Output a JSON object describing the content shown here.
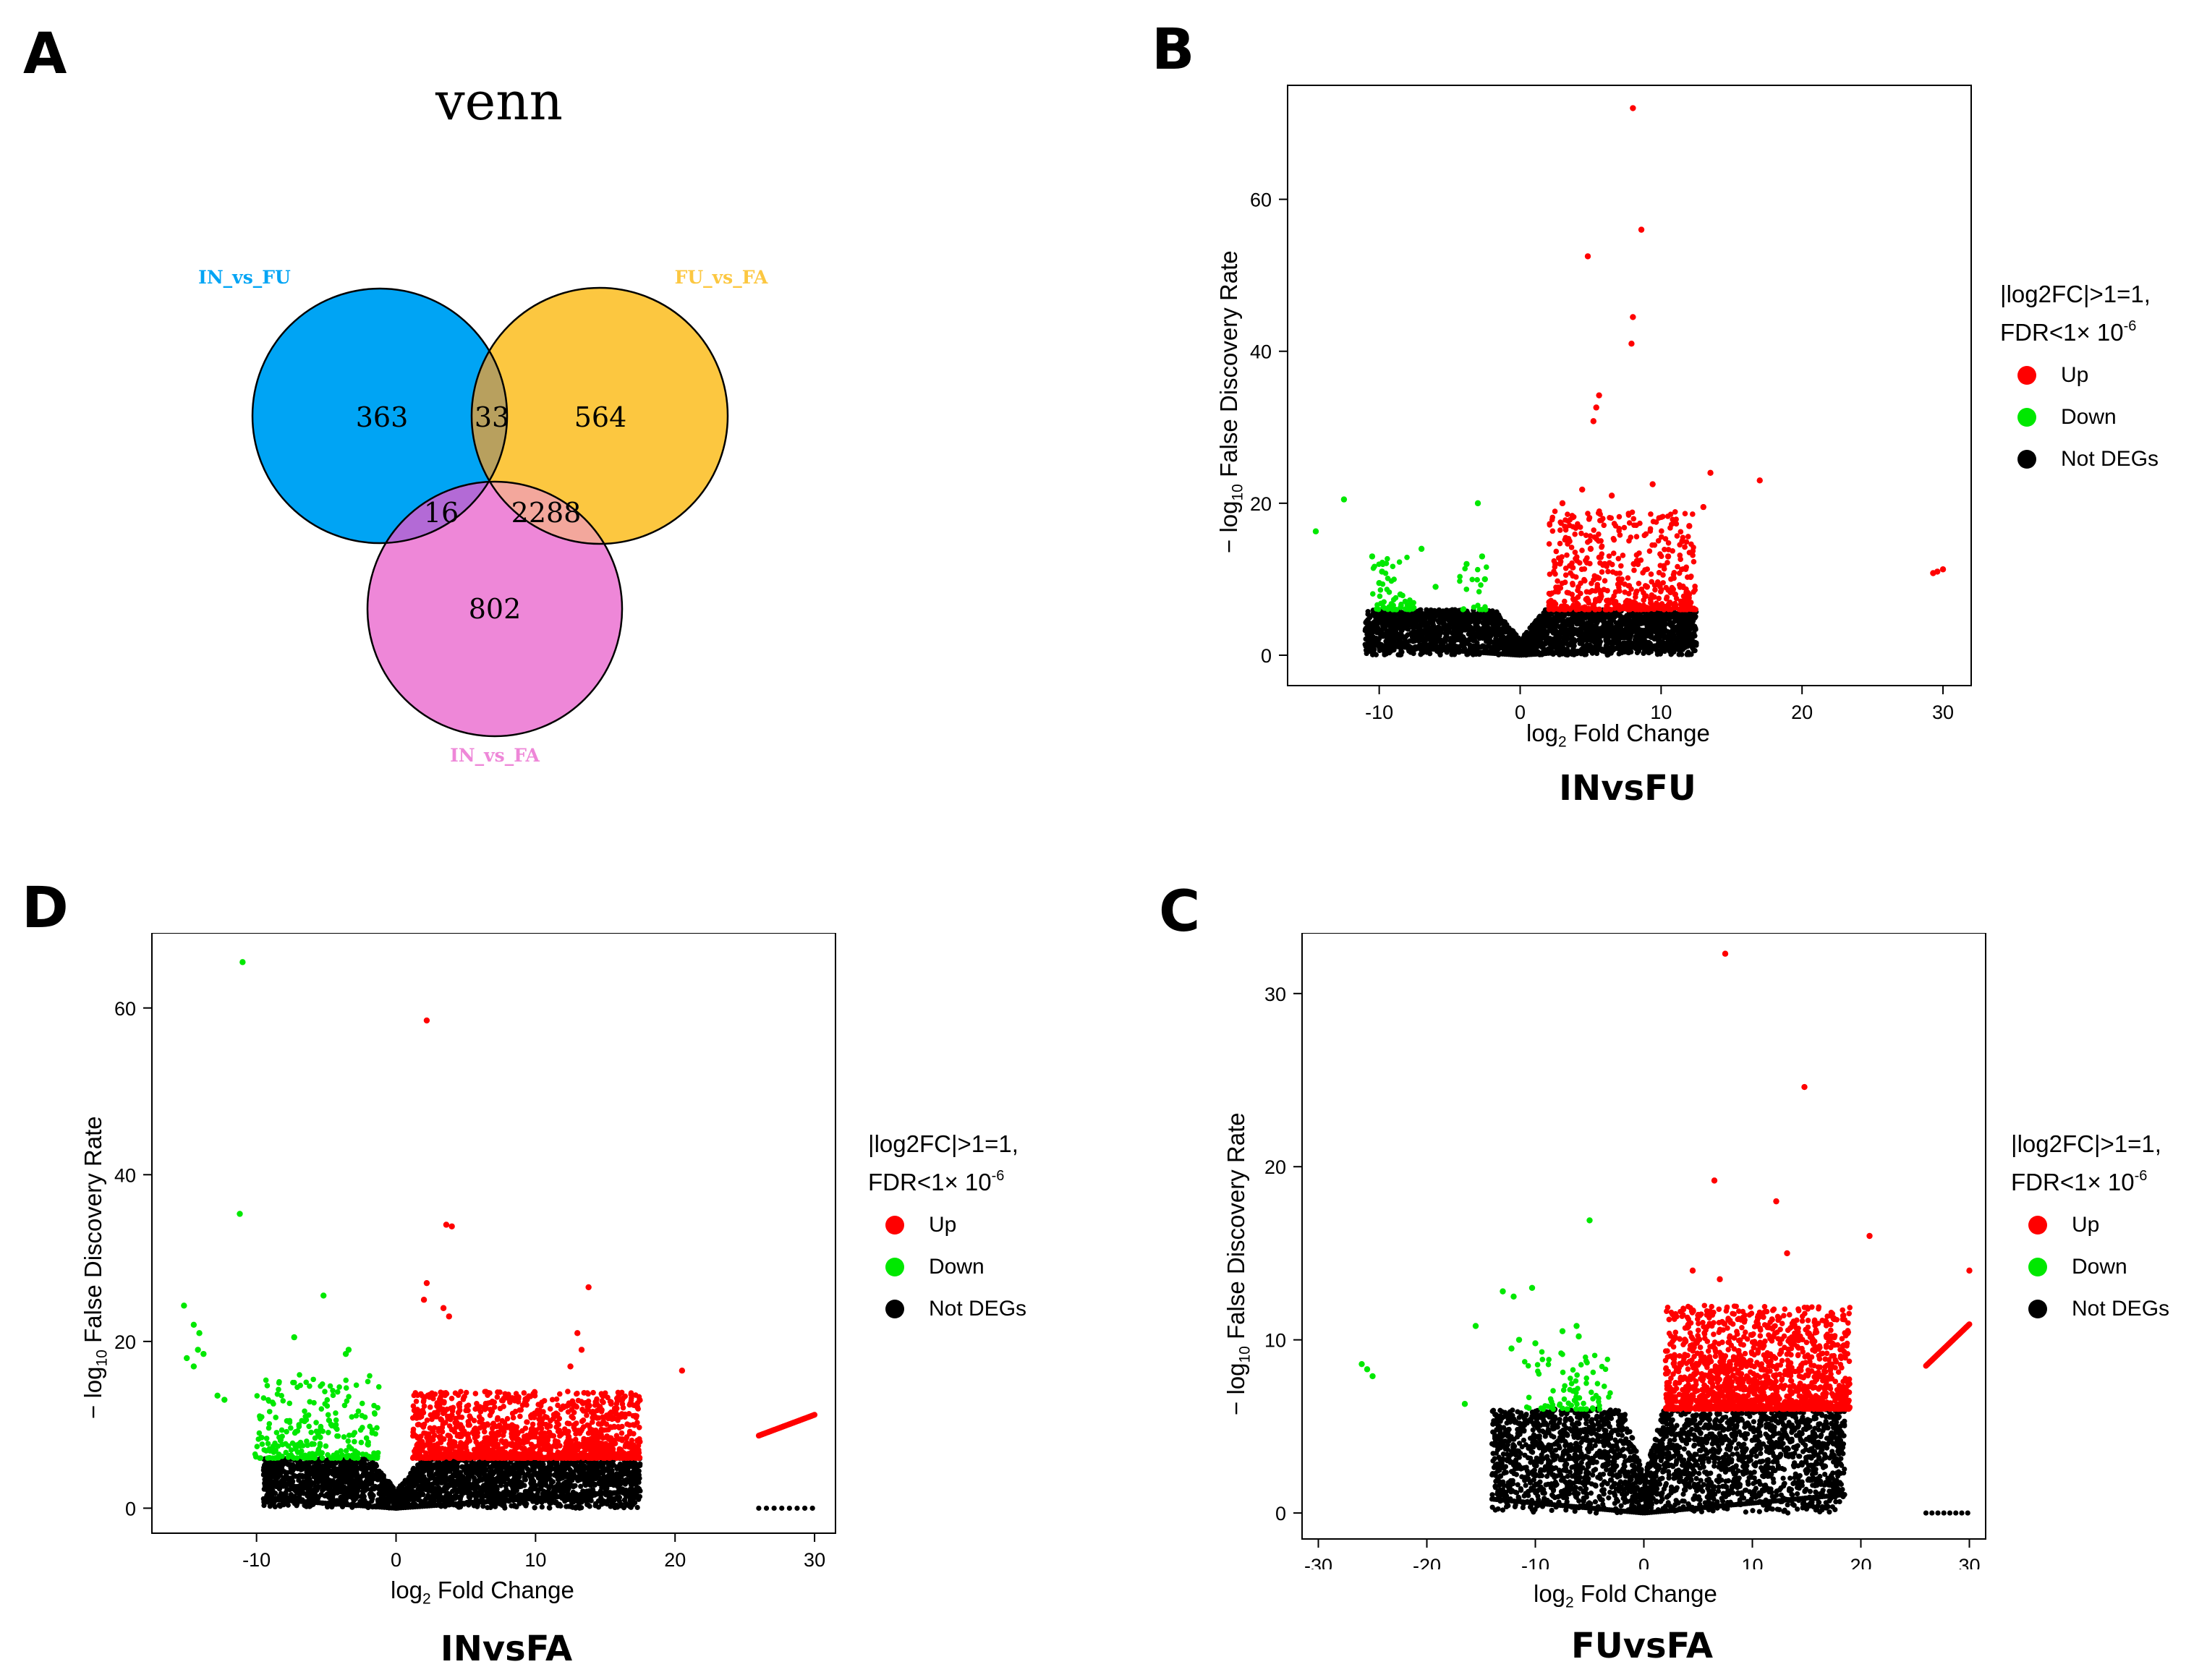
{
  "panels": {
    "a": "A",
    "b": "B",
    "c": "C",
    "d": "D"
  },
  "venn": {
    "title": "venn",
    "sets": [
      {
        "name": "IN_vs_FU",
        "color": "#00A4F4"
      },
      {
        "name": "FU_vs_FA",
        "color": "#FCC740"
      },
      {
        "name": "IN_vs_FA",
        "color": "#EE87D8"
      }
    ],
    "counts": {
      "only_in_fu": "363",
      "in_fu_and_fu_fa": "33",
      "only_fu_fa": "564",
      "in_fu_and_in_fa": "16",
      "fu_fa_and_in_fa": "2288",
      "only_in_fa": "802"
    }
  },
  "legend": {
    "title_line1": "|log2FC|>1=1,",
    "title_line2": "FDR<1× 10",
    "title_sup": "-6",
    "up": "Up",
    "down": "Down",
    "not": "Not DEGs",
    "colors": {
      "up": "#FF0000",
      "down": "#00E800",
      "not": "#000000"
    }
  },
  "axis": {
    "xlabel_pre": "log",
    "xlabel_sub": "2",
    "xlabel_post": " Fold Change",
    "ylabel_pre": "− log",
    "ylabel_sub": "10",
    "ylabel_post": " False Discovery Rate"
  },
  "chart_data": [
    {
      "type": "scatter",
      "id": "INvsFU",
      "title": "INvsFU",
      "xlim": [
        -16.5,
        32
      ],
      "ylim": [
        -4,
        75
      ],
      "xticks": [
        -10,
        0,
        10,
        20,
        30
      ],
      "yticks": [
        0,
        20,
        40,
        60
      ],
      "threshold_y": 6,
      "black_x": [
        -11,
        12.5
      ],
      "points_up": [
        [
          8,
          72
        ],
        [
          8.6,
          56
        ],
        [
          4.8,
          52.5
        ],
        [
          8,
          44.5
        ],
        [
          7.9,
          41
        ],
        [
          5.6,
          34.2
        ],
        [
          5.4,
          32.6
        ],
        [
          5.2,
          30.8
        ],
        [
          13.5,
          24
        ],
        [
          17,
          23
        ],
        [
          9.4,
          22.5
        ],
        [
          4.4,
          21.8
        ],
        [
          3,
          20
        ],
        [
          6.5,
          21
        ],
        [
          13,
          19.5
        ],
        [
          29.3,
          10.8
        ],
        [
          29.6,
          11
        ],
        [
          30,
          11.3
        ],
        [
          12,
          17
        ],
        [
          11.5,
          15
        ],
        [
          10.5,
          13
        ],
        [
          3.5,
          15
        ],
        [
          5,
          14
        ],
        [
          6,
          12
        ],
        [
          7,
          10
        ],
        [
          2.5,
          12
        ],
        [
          9,
          9
        ],
        [
          11,
          8
        ]
      ],
      "points_down": [
        [
          -14.5,
          16.3
        ],
        [
          -12.5,
          20.5
        ],
        [
          -3,
          20
        ],
        [
          -7,
          14
        ],
        [
          -2.7,
          13
        ],
        [
          -3.8,
          12
        ],
        [
          -2.5,
          10
        ],
        [
          -10.5,
          13
        ],
        [
          -9.8,
          11
        ],
        [
          -10,
          9.5
        ],
        [
          -6,
          9
        ],
        [
          -8.5,
          8
        ]
      ],
      "scatter_up": {
        "count": 520,
        "x": [
          2,
          12.5
        ],
        "y": [
          6,
          19
        ]
      },
      "scatter_down": {
        "count": 55,
        "x": [
          -10.5,
          -7.5
        ],
        "y": [
          6,
          13
        ]
      },
      "scatter_down2": {
        "count": 18,
        "x": [
          -4.5,
          -2.2
        ],
        "y": [
          6,
          12
        ]
      },
      "line_up": null
    },
    {
      "type": "scatter",
      "id": "INvsFA",
      "title": "INvsFA",
      "xlim": [
        -17.5,
        31.5
      ],
      "ylim": [
        -3,
        69
      ],
      "xticks": [
        -10,
        0,
        10,
        20,
        30
      ],
      "yticks": [
        0,
        20,
        40,
        60
      ],
      "threshold_y": 6,
      "black_x": [
        -9.5,
        17.5
      ],
      "points_up": [
        [
          2.2,
          58.5
        ],
        [
          3.6,
          34
        ],
        [
          4,
          33.8
        ],
        [
          2.2,
          27
        ],
        [
          2,
          25
        ],
        [
          3.4,
          24
        ],
        [
          3.8,
          23
        ],
        [
          13.8,
          26.5
        ],
        [
          13,
          21
        ],
        [
          13.3,
          19
        ],
        [
          20.5,
          16.5
        ],
        [
          12.5,
          17
        ]
      ],
      "points_down": [
        [
          -11,
          65.5
        ],
        [
          -11.2,
          35.3
        ],
        [
          -15.2,
          24.3
        ],
        [
          -14.5,
          22
        ],
        [
          -14.1,
          21
        ],
        [
          -14.2,
          19
        ],
        [
          -14.5,
          17
        ],
        [
          -15,
          18
        ],
        [
          -13.8,
          18.5
        ],
        [
          -5.2,
          25.5
        ],
        [
          -3.4,
          19
        ],
        [
          -3.6,
          18.5
        ],
        [
          -7.3,
          20.5
        ],
        [
          -12.8,
          13.5
        ],
        [
          -12.3,
          13
        ]
      ],
      "scatter_up": {
        "count": 1400,
        "x": [
          1.2,
          17.5
        ],
        "y": [
          6,
          14
        ]
      },
      "scatter_down": {
        "count": 260,
        "x": [
          -10.2,
          -1.2
        ],
        "y": [
          6,
          16
        ]
      },
      "scatter_down2": null,
      "line_up": {
        "x": [
          26,
          30
        ],
        "y": [
          8.7,
          11.2
        ]
      }
    },
    {
      "type": "scatter",
      "id": "FUvsFA",
      "title": "FUvsFA",
      "xlim": [
        -31.5,
        31.5
      ],
      "ylim": [
        -1.5,
        33.5
      ],
      "xticks": [
        -30,
        -20,
        -10,
        0,
        10,
        20,
        30
      ],
      "yticks": [
        0,
        10,
        20,
        30
      ],
      "threshold_y": 6,
      "black_x": [
        -14,
        18.5
      ],
      "points_up": [
        [
          7.5,
          32.3
        ],
        [
          14.8,
          24.6
        ],
        [
          12.2,
          18
        ],
        [
          6.5,
          19.2
        ],
        [
          20.8,
          16
        ],
        [
          30,
          14
        ],
        [
          13.2,
          15
        ],
        [
          4.5,
          14
        ],
        [
          7,
          13.5
        ]
      ],
      "points_down": [
        [
          -26,
          8.6
        ],
        [
          -25.5,
          8.3
        ],
        [
          -25,
          7.9
        ],
        [
          -5,
          16.9
        ],
        [
          -15.5,
          10.8
        ],
        [
          -13,
          12.8
        ],
        [
          -12,
          12.5
        ],
        [
          -10.3,
          13
        ],
        [
          -16.5,
          6.3
        ],
        [
          -12.2,
          9.5
        ],
        [
          -11.5,
          10
        ],
        [
          -10,
          9.8
        ],
        [
          -7.5,
          10.5
        ],
        [
          -6.2,
          10.8
        ],
        [
          -6,
          10.2
        ]
      ],
      "scatter_up": {
        "count": 1500,
        "x": [
          2,
          19
        ],
        "y": [
          6,
          12
        ]
      },
      "scatter_down": {
        "count": 80,
        "x": [
          -11,
          -3
        ],
        "y": [
          6,
          9.5
        ]
      },
      "scatter_down2": null,
      "line_up": {
        "x": [
          26,
          30
        ],
        "y": [
          8.5,
          10.9
        ]
      }
    }
  ]
}
